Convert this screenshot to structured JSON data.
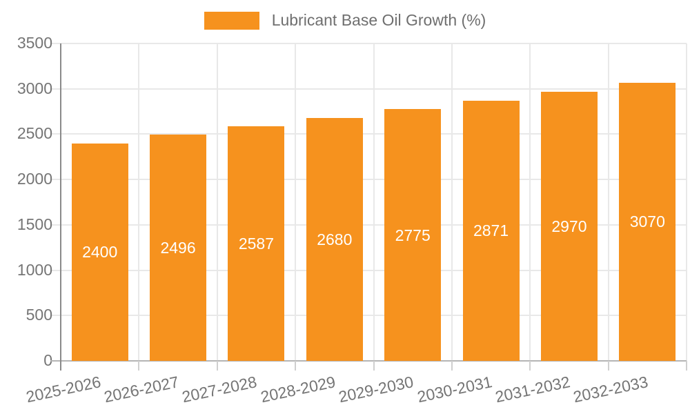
{
  "legend": {
    "label": "Lubricant Base Oil Growth (%)",
    "swatch_color": "#f6921e"
  },
  "chart_data": {
    "type": "bar",
    "title": "",
    "xlabel": "",
    "ylabel": "",
    "categories": [
      "2025-2026",
      "2026-2027",
      "2027-2028",
      "2028-2029",
      "2029-2030",
      "2030-2031",
      "2031-2032",
      "2032-2033"
    ],
    "series": [
      {
        "name": "Lubricant Base Oil Growth (%)",
        "values": [
          2400,
          2496,
          2587,
          2680,
          2775,
          2871,
          2970,
          3070
        ]
      }
    ],
    "bar_labels": [
      "2400",
      "2496",
      "2587",
      "2680",
      "2775",
      "2871",
      "2970",
      "3070"
    ],
    "ylim": [
      0,
      3500
    ],
    "yticks": [
      0,
      500,
      1000,
      1500,
      2000,
      2500,
      3000,
      3500
    ],
    "grid": true,
    "legend_position": "top",
    "bar_color": "#f6921e",
    "value_label_color": "#ffffff",
    "axis_text_color": "#757575",
    "gridline_color": "#e8e8e8",
    "axis_line_color": "#8a8a8a",
    "baseline_color": "#b4b4b4"
  }
}
